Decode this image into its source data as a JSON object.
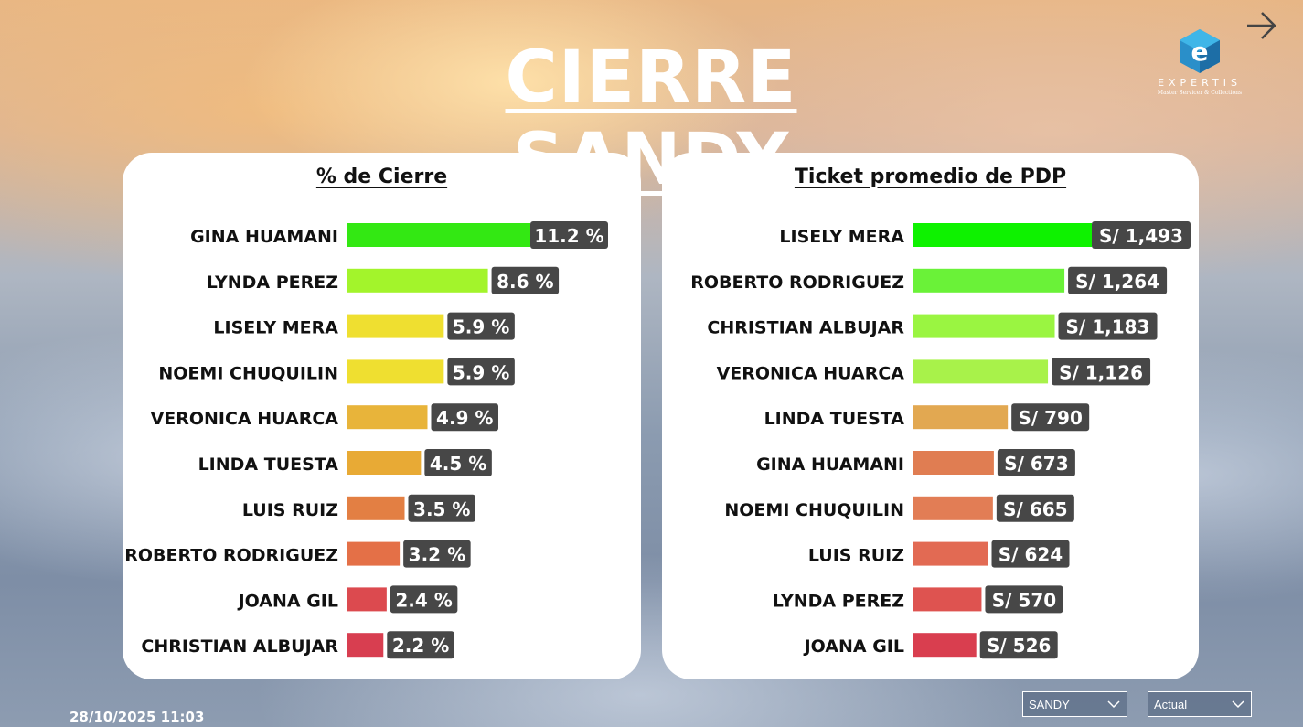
{
  "title": "CIERRE SANDY",
  "logo": {
    "word": "EXPERTIS",
    "tagline": "Master Servicer & Collections"
  },
  "timestamp": "28/10/2025 11:03",
  "filters": [
    {
      "value": "SANDY"
    },
    {
      "value": "Actual"
    }
  ],
  "chart_data": [
    {
      "type": "bar",
      "orientation": "horizontal",
      "title": "% de Cierre",
      "categories": [
        "GINA HUAMANI",
        "LYNDA PEREZ",
        "LISELY MERA",
        "NOEMI CHUQUILIN",
        "VERONICA HUARCA",
        "LINDA TUESTA",
        "LUIS RUIZ",
        "ROBERTO RODRIGUEZ",
        "JOANA GIL",
        "CHRISTIAN ALBUJAR"
      ],
      "values": [
        11.2,
        8.6,
        5.9,
        5.9,
        4.9,
        4.5,
        3.5,
        3.2,
        2.4,
        2.2
      ],
      "labels": [
        "11.2 %",
        "8.6 %",
        "5.9 %",
        "5.9 %",
        "4.9 %",
        "4.5 %",
        "3.5 %",
        "3.2 %",
        "2.4 %",
        "2.2 %"
      ],
      "colors": [
        "#33e813",
        "#a3f42b",
        "#efdf30",
        "#efdf30",
        "#e8b43a",
        "#e8aa35",
        "#e37f43",
        "#e47047",
        "#dc4a4f",
        "#d83e50"
      ],
      "xlim": [
        0,
        11.2
      ],
      "grid": false,
      "legend": "none"
    },
    {
      "type": "bar",
      "orientation": "horizontal",
      "title": "Ticket promedio de PDP",
      "categories": [
        "LISELY MERA",
        "ROBERTO RODRIGUEZ",
        "CHRISTIAN ALBUJAR",
        "VERONICA HUARCA",
        "LINDA TUESTA",
        "GINA HUAMANI",
        "NOEMI CHUQUILIN",
        "LUIS RUIZ",
        "LYNDA PEREZ",
        "JOANA GIL"
      ],
      "values": [
        1493,
        1264,
        1183,
        1126,
        790,
        673,
        665,
        624,
        570,
        526
      ],
      "labels": [
        "S/ 1,493",
        "S/ 1,264",
        "S/ 1,183",
        "S/ 1,126",
        "S/ 790",
        "S/ 673",
        "S/ 665",
        "S/ 624",
        "S/ 570",
        "S/ 526"
      ],
      "colors": [
        "#0ef200",
        "#6af238",
        "#9af541",
        "#a8f24a",
        "#e2a851",
        "#e07d52",
        "#e27d55",
        "#e26a53",
        "#de5350",
        "#d93e4f"
      ],
      "xlim": [
        0,
        1493
      ],
      "grid": false,
      "legend": "none"
    }
  ]
}
